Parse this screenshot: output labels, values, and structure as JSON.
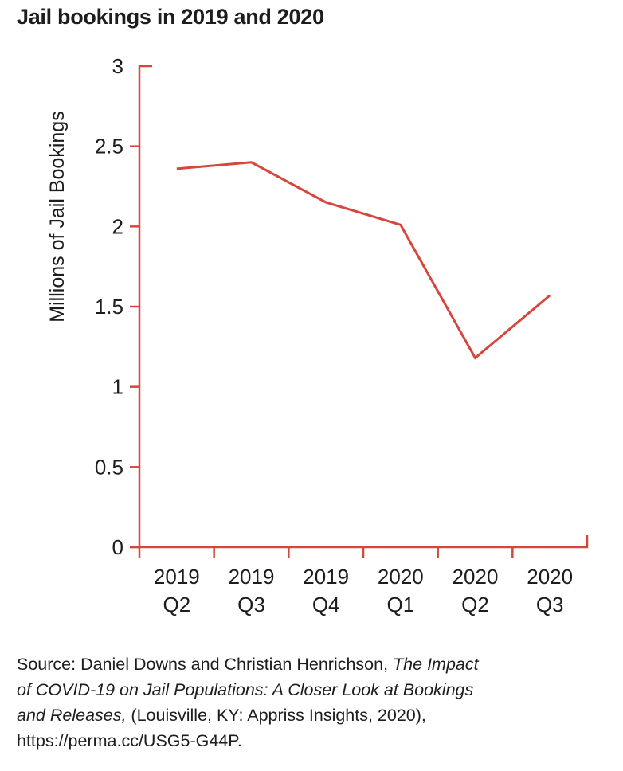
{
  "title": "Jail bookings in 2019 and 2020",
  "colors": {
    "accent_red": "#d7463c",
    "text": "#1d1d1b",
    "background": "#ffffff"
  },
  "chart_data": {
    "type": "line",
    "title": "Jail bookings in 2019 and 2020",
    "categories": [
      "2019 Q2",
      "2019 Q3",
      "2019 Q4",
      "2020 Q1",
      "2020 Q2",
      "2020 Q3"
    ],
    "values": [
      2.36,
      2.4,
      2.15,
      2.01,
      1.18,
      1.57
    ],
    "xlabel": "",
    "ylabel": "Millions of Jail Bookings",
    "ylim": [
      0,
      3
    ],
    "y_tick_values": [
      3,
      2.5,
      2,
      1.5,
      1,
      0.5,
      0
    ],
    "y_tick_labels": [
      "3",
      "2.5",
      "2",
      "1.5",
      "1",
      "0.5",
      "0"
    ],
    "grid": "off",
    "legend": "none",
    "line_color": "#d7463c",
    "axis_color": "#d7463c"
  },
  "source": {
    "lines": [
      {
        "pre": "Source: Daniel Downs and Christian Henrichson, ",
        "italic": "The Impact",
        "post": ""
      },
      {
        "pre": "",
        "italic": "of COVID-19 on Jail Populations: A Closer Look at Bookings",
        "post": ""
      },
      {
        "pre": "",
        "italic": "and Releases,",
        "post": " (Louisville, KY: Appriss Insights, 2020),"
      },
      {
        "pre": "https://perma.cc/USG5-G44P.",
        "italic": "",
        "post": ""
      }
    ]
  }
}
